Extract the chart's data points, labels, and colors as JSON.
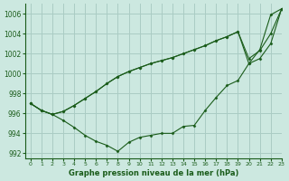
{
  "title": "Graphe pression niveau de la mer (hPa)",
  "background_color": "#cce8e0",
  "grid_color": "#aaccc4",
  "line_color": "#1a5c1a",
  "marker_color": "#1a5c1a",
  "xlim": [
    -0.5,
    23
  ],
  "ylim": [
    991.5,
    1007.0
  ],
  "yticks": [
    992,
    994,
    996,
    998,
    1000,
    1002,
    1004,
    1006
  ],
  "xticks": [
    0,
    1,
    2,
    3,
    4,
    5,
    6,
    7,
    8,
    9,
    10,
    11,
    12,
    13,
    14,
    15,
    16,
    17,
    18,
    19,
    20,
    21,
    22,
    23
  ],
  "series": [
    [
      997.0,
      996.3,
      995.9,
      996.2,
      996.8,
      997.5,
      998.2,
      999.0,
      999.7,
      1000.2,
      1000.6,
      1001.0,
      1001.3,
      1001.6,
      1002.0,
      1002.4,
      1002.8,
      1003.3,
      1003.7,
      1004.2,
      1001.0,
      1001.5,
      1003.0,
      1006.5
    ],
    [
      997.0,
      996.3,
      995.9,
      996.2,
      996.8,
      997.5,
      998.2,
      999.0,
      999.7,
      1000.2,
      1000.6,
      1001.0,
      1001.3,
      1001.6,
      1002.0,
      1002.4,
      1002.8,
      1003.3,
      1003.7,
      1004.2,
      1001.5,
      1002.3,
      1004.0,
      1006.5
    ],
    [
      997.0,
      996.3,
      995.9,
      995.3,
      994.6,
      993.8,
      993.2,
      992.8,
      992.2,
      993.1,
      993.6,
      993.8,
      994.0,
      994.0,
      994.7,
      994.8,
      996.3,
      997.6,
      998.8,
      999.3,
      1001.0,
      1002.4,
      1005.9,
      1006.5
    ]
  ]
}
